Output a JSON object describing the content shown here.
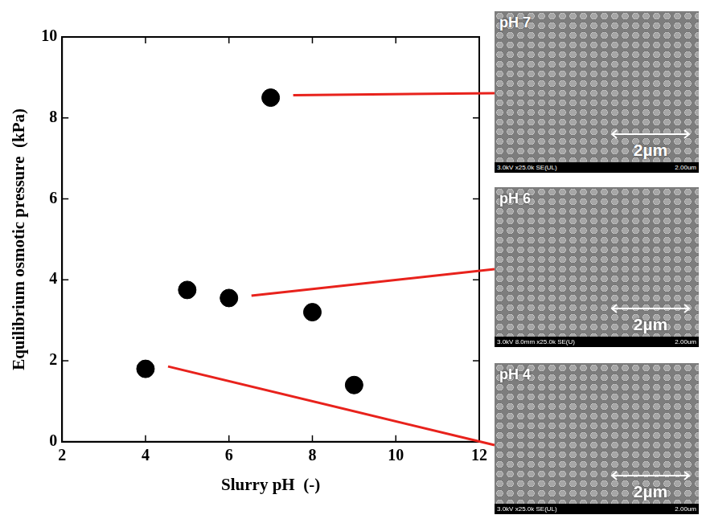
{
  "chart_data": {
    "type": "scatter",
    "x": [
      4,
      5,
      6,
      7,
      8,
      9
    ],
    "values": [
      1.8,
      3.75,
      3.55,
      8.5,
      3.2,
      1.4
    ],
    "color": "#000000",
    "marker": "circle",
    "x_label": "Slurry pH  (-)",
    "y_label": "Equilibrium osmotic pressure  (kPa)",
    "xlim": [
      2,
      12
    ],
    "xticks": [
      2,
      4,
      6,
      8,
      10,
      12
    ],
    "ylim": [
      0,
      10
    ],
    "yticks": [
      0,
      2,
      4,
      6,
      8,
      10
    ],
    "grid": false
  },
  "micrographs": [
    {
      "label": "pH 7",
      "ph": 7,
      "scale_bar": "2µm",
      "caption": "3.0kV x25.0k SE(UL)",
      "caption_right": "2.00um"
    },
    {
      "label": "pH 6",
      "ph": 6,
      "scale_bar": "2µm",
      "caption": "3.0kV 8.0mm x25.0k SE(U)",
      "caption_right": "2.00um"
    },
    {
      "label": "pH 4",
      "ph": 4,
      "scale_bar": "2µm",
      "caption": "3.0kV x25.0k SE(UL)",
      "caption_right": "2.00um"
    }
  ]
}
